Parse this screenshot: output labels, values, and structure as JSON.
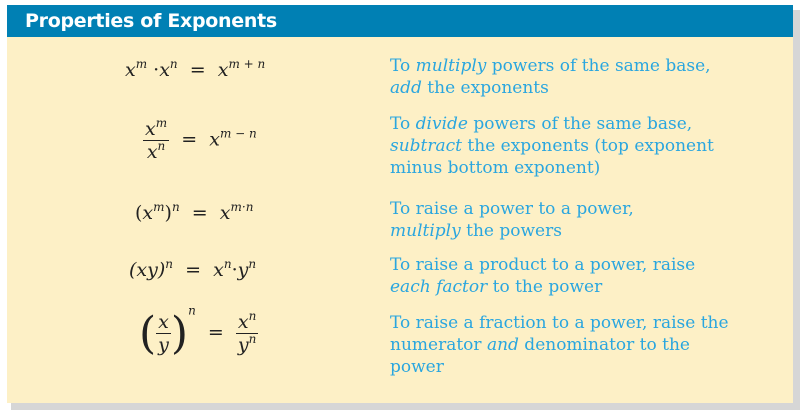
{
  "title": "Properties of Exponents",
  "rows": [
    {
      "formula": {
        "a": "x",
        "a_exp": "m",
        "dot": "·",
        "b": "x",
        "b_exp": "n",
        "eq": "=",
        "c": "x",
        "c_exp": "m + n"
      },
      "desc": {
        "p1": "To ",
        "em1": "multiply",
        "p2": " powers of the same base,",
        "em2": "add",
        "p3": " the exponents"
      }
    },
    {
      "formula": {
        "num": "x",
        "num_exp": "m",
        "den": "x",
        "den_exp": "n",
        "eq": "=",
        "c": "x",
        "c_exp": "m − n"
      },
      "desc": {
        "p1": "To ",
        "em1": "divide",
        "p2": " powers of the same base,",
        "em2": "subtract",
        "p3": " the exponents (top exponent minus bottom exponent)"
      }
    },
    {
      "formula": {
        "open": "(",
        "a": "x",
        "a_exp": "m",
        "close": ")",
        "outer_exp": "n",
        "eq": "=",
        "c": "x",
        "c_exp": "m·n"
      },
      "desc": {
        "p1": "To raise a power to a power,",
        "em1": "multiply",
        "p2": " the powers"
      }
    },
    {
      "formula": {
        "lhs": "(xy)",
        "lhs_exp": "n",
        "eq": "=",
        "a": "x",
        "a_exp": "n",
        "dot": "·",
        "b": "y",
        "b_exp": "n"
      },
      "desc": {
        "p1": "To raise a product to a power, raise",
        "em1": "each factor",
        "p2": " to the power"
      }
    },
    {
      "formula": {
        "open": "(",
        "num": "x",
        "den": "y",
        "close": ")",
        "outer_exp": "n",
        "eq": "=",
        "rnum": "x",
        "rnum_exp": "n",
        "rden": "y",
        "rden_exp": "n"
      },
      "desc": {
        "p1": "To raise a fraction to a power, raise the numerator ",
        "em1": "and",
        "p2": " denominator to the power"
      }
    }
  ]
}
